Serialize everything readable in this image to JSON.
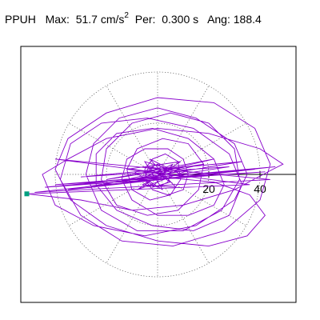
{
  "header": {
    "station": "PPUH",
    "max_label": "Max:",
    "max_value": "51.7",
    "max_unit": "cm/s",
    "max_unit_exp": "2",
    "per_label": "Per:",
    "per_value": "0.300 s",
    "ang_label": "Ang:",
    "ang_value": "188.4"
  },
  "colors": {
    "trace": "#8800cc",
    "marker": "#00a080",
    "grid": "#555555",
    "axis": "#000000"
  },
  "chart_data": {
    "type": "polar-particle-motion",
    "title": "",
    "xlabel": "",
    "ylabel": "",
    "ring_radii": [
      20,
      40
    ],
    "ring_labels": [
      "20",
      "40"
    ],
    "r_max": 51.7,
    "spoke_angles_deg": [
      0,
      30,
      60,
      90,
      120,
      150,
      180,
      210,
      240,
      270,
      300,
      330
    ],
    "peak_angle_deg": 188.4,
    "peak_marker": {
      "x": -51.1,
      "y": -7.6
    },
    "trace": [
      [
        0,
        0
      ],
      [
        3,
        2
      ],
      [
        -4,
        3
      ],
      [
        5,
        -3
      ],
      [
        -2,
        -5
      ],
      [
        6,
        4
      ],
      [
        -7,
        -2
      ],
      [
        8,
        1
      ],
      [
        -5,
        5
      ],
      [
        2,
        -6
      ],
      [
        -9,
        1
      ],
      [
        10,
        3
      ],
      [
        -6,
        -4
      ],
      [
        7,
        -5
      ],
      [
        -3,
        6
      ],
      [
        11,
        -1
      ],
      [
        -12,
        2
      ],
      [
        9,
        5
      ],
      [
        -8,
        -6
      ],
      [
        13,
        2
      ],
      [
        -15,
        -3
      ],
      [
        18,
        4
      ],
      [
        -20,
        -2
      ],
      [
        22,
        6
      ],
      [
        -25,
        -5
      ],
      [
        28,
        3
      ],
      [
        -30,
        -1
      ],
      [
        33,
        5
      ],
      [
        -35,
        -6
      ],
      [
        38,
        2
      ],
      [
        -40,
        -4
      ],
      [
        42,
        1
      ],
      [
        -44,
        -5
      ],
      [
        46,
        3
      ],
      [
        -48,
        -7
      ],
      [
        44,
        -2
      ],
      [
        -40,
        6
      ],
      [
        36,
        -4
      ],
      [
        -51.1,
        -7.6
      ],
      [
        -30,
        -10
      ],
      [
        -10,
        -14
      ],
      [
        10,
        -12
      ],
      [
        30,
        -6
      ],
      [
        45,
        2
      ],
      [
        49,
        4
      ],
      [
        40,
        10
      ],
      [
        20,
        16
      ],
      [
        0,
        18
      ],
      [
        -20,
        14
      ],
      [
        -35,
        6
      ],
      [
        -45,
        0
      ],
      [
        -40,
        -12
      ],
      [
        -25,
        -20
      ],
      [
        -5,
        -24
      ],
      [
        15,
        -20
      ],
      [
        30,
        -10
      ],
      [
        35,
        0
      ],
      [
        30,
        12
      ],
      [
        15,
        22
      ],
      [
        0,
        26
      ],
      [
        -15,
        22
      ],
      [
        -25,
        12
      ],
      [
        -28,
        0
      ],
      [
        -22,
        -14
      ],
      [
        -8,
        -22
      ],
      [
        10,
        -22
      ],
      [
        25,
        -14
      ],
      [
        32,
        -2
      ],
      [
        30,
        10
      ],
      [
        20,
        20
      ],
      [
        5,
        24
      ],
      [
        -10,
        20
      ],
      [
        -20,
        10
      ],
      [
        -22,
        -2
      ],
      [
        -16,
        -12
      ],
      [
        -4,
        -16
      ],
      [
        8,
        -14
      ],
      [
        16,
        -6
      ],
      [
        18,
        4
      ],
      [
        12,
        12
      ],
      [
        2,
        14
      ],
      [
        -8,
        10
      ],
      [
        -12,
        2
      ],
      [
        -10,
        -6
      ],
      [
        -3,
        -10
      ],
      [
        5,
        -8
      ],
      [
        9,
        -2
      ],
      [
        8,
        5
      ],
      [
        3,
        8
      ],
      [
        -2,
        6
      ],
      [
        -5,
        2
      ],
      [
        -4,
        -3
      ],
      [
        0,
        -5
      ],
      [
        4,
        -3
      ],
      [
        5,
        1
      ],
      [
        2,
        3
      ],
      [
        -1,
        2
      ],
      [
        -2,
        0
      ],
      [
        -1,
        -2
      ],
      [
        1,
        -1
      ],
      [
        22,
        -3
      ],
      [
        36,
        -8
      ],
      [
        42,
        -16
      ],
      [
        35,
        -24
      ],
      [
        20,
        -28
      ],
      [
        0,
        -26
      ],
      [
        -20,
        -20
      ],
      [
        -34,
        -10
      ],
      [
        -40,
        2
      ],
      [
        -35,
        14
      ],
      [
        -20,
        24
      ],
      [
        0,
        30
      ],
      [
        22,
        28
      ],
      [
        38,
        18
      ],
      [
        44,
        4
      ],
      [
        40,
        -10
      ],
      [
        26,
        -22
      ],
      [
        6,
        -28
      ],
      [
        -14,
        -26
      ],
      [
        -30,
        -16
      ],
      [
        -38,
        -2
      ],
      [
        -34,
        12
      ],
      [
        -22,
        20
      ],
      [
        -4,
        22
      ],
      [
        14,
        18
      ],
      [
        28,
        8
      ],
      [
        33,
        -4
      ],
      [
        28,
        -16
      ],
      [
        14,
        -22
      ],
      [
        -2,
        -20
      ],
      [
        -16,
        -14
      ],
      [
        -24,
        -4
      ],
      [
        -24,
        8
      ],
      [
        -16,
        16
      ],
      [
        -2,
        18
      ],
      [
        12,
        14
      ],
      [
        22,
        6
      ],
      [
        26,
        -4
      ],
      [
        22,
        -12
      ],
      [
        12,
        -16
      ],
      [
        0,
        -16
      ],
      [
        -10,
        -10
      ],
      [
        -14,
        -2
      ],
      [
        -12,
        6
      ],
      [
        -5,
        10
      ],
      [
        4,
        10
      ],
      [
        10,
        6
      ],
      [
        12,
        0
      ],
      [
        10,
        -6
      ],
      [
        4,
        -8
      ],
      [
        -2,
        -6
      ],
      [
        -5,
        -2
      ],
      [
        -4,
        2
      ],
      [
        0,
        4
      ],
      [
        3,
        2
      ],
      [
        2,
        -1
      ],
      [
        0,
        0
      ]
    ]
  }
}
